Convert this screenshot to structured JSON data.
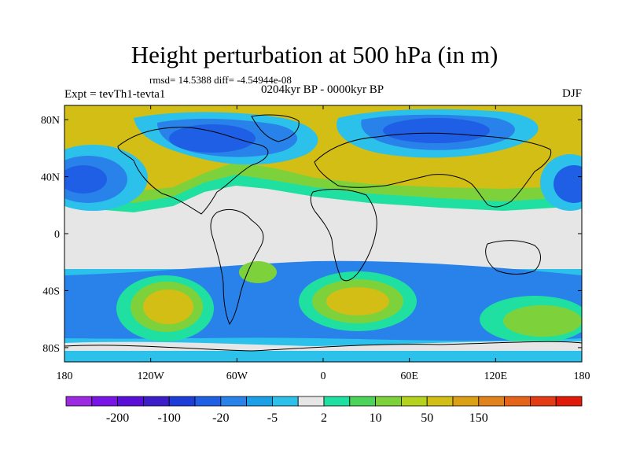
{
  "header": {
    "title": "Height perturbation at 500 hPa (in m)",
    "stats": "rmsd= 14.5388 diff= -4.54944e-08",
    "period": "0204kyr BP - 0000kyr BP",
    "experiment": "Expt = tevTh1-tevta1",
    "season": "DJF"
  },
  "map": {
    "x_ticks": [
      {
        "lon": -180,
        "label": "180"
      },
      {
        "lon": -120,
        "label": "120W"
      },
      {
        "lon": -60,
        "label": "60W"
      },
      {
        "lon": 0,
        "label": "0"
      },
      {
        "lon": 60,
        "label": "60E"
      },
      {
        "lon": 120,
        "label": "120E"
      },
      {
        "lon": 180,
        "label": "180"
      }
    ],
    "y_ticks": [
      {
        "lat": 80,
        "label": "80N"
      },
      {
        "lat": 40,
        "label": "40N"
      },
      {
        "lat": 0,
        "label": "0"
      },
      {
        "lat": -40,
        "label": "40S"
      },
      {
        "lat": -80,
        "label": "80S"
      }
    ],
    "lon_range": [
      -180,
      180
    ],
    "lat_range": [
      -90,
      90
    ]
  },
  "colorbar": {
    "colors": [
      "#9b2ae0",
      "#7a14e6",
      "#5a0fd8",
      "#3b1ec8",
      "#1e3cd7",
      "#1f5fe6",
      "#2882ea",
      "#19a0e6",
      "#2cc1ea",
      "#e6e6e6",
      "#1fe0a0",
      "#4bd35a",
      "#7dd23c",
      "#b5d21e",
      "#d2be14",
      "#dca014",
      "#e2821a",
      "#e6641a",
      "#e33c14",
      "#e01a0a"
    ],
    "labels": [
      {
        "after_index": 1,
        "text": "-200"
      },
      {
        "after_index": 3,
        "text": "-100"
      },
      {
        "after_index": 5,
        "text": "-20"
      },
      {
        "after_index": 7,
        "text": "-5"
      },
      {
        "after_index": 9,
        "text": "2"
      },
      {
        "after_index": 11,
        "text": "10"
      },
      {
        "after_index": 13,
        "text": "50"
      },
      {
        "after_index": 15,
        "text": "150"
      }
    ]
  }
}
